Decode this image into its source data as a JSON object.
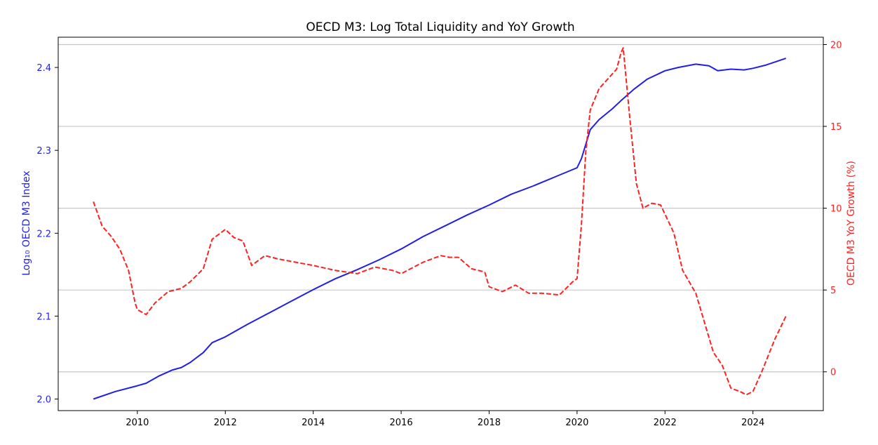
{
  "chart_data": {
    "type": "line",
    "title": "OECD M3: Log Total Liquidity and YoY Growth",
    "xlabel": "",
    "x_ticks": [
      "2010",
      "2012",
      "2014",
      "2016",
      "2018",
      "2020",
      "2022",
      "2024"
    ],
    "xlim": [
      2008.2,
      2025.6
    ],
    "grid": "horizontal lines at right-axis ticks",
    "left_axis": {
      "label": "Log₁₀ OECD M3 Index",
      "color": "#1f1fe8",
      "ylim": [
        1.986,
        2.4365
      ],
      "ticks": [
        "2.0",
        "2.1",
        "2.2",
        "2.3",
        "2.4"
      ]
    },
    "right_axis": {
      "label": "OECD M3 YoY Growth (%)",
      "color": "#ff2020",
      "ylim": [
        -2.37,
        20.45
      ],
      "ticks": [
        "0",
        "5",
        "10",
        "15",
        "20"
      ]
    },
    "series": [
      {
        "axis": "left",
        "style": "solid",
        "color": "#1f1fe8",
        "x": [
          2009.0,
          2009.5,
          2010.0,
          2010.2,
          2010.5,
          2010.8,
          2011.0,
          2011.2,
          2011.5,
          2011.7,
          2012.0,
          2012.5,
          2013.0,
          2013.5,
          2014.0,
          2014.5,
          2015.0,
          2015.5,
          2016.0,
          2016.5,
          2017.0,
          2017.5,
          2018.0,
          2018.5,
          2019.0,
          2019.5,
          2020.0,
          2020.1,
          2020.3,
          2020.5,
          2020.8,
          2021.0,
          2021.3,
          2021.6,
          2022.0,
          2022.3,
          2022.7,
          2023.0,
          2023.2,
          2023.5,
          2023.8,
          2024.0,
          2024.3,
          2024.75
        ],
        "y": [
          2.0,
          2.009,
          2.016,
          2.019,
          2.028,
          2.035,
          2.038,
          2.044,
          2.056,
          2.068,
          2.075,
          2.09,
          2.104,
          2.118,
          2.132,
          2.145,
          2.156,
          2.168,
          2.181,
          2.196,
          2.209,
          2.222,
          2.234,
          2.247,
          2.257,
          2.268,
          2.279,
          2.29,
          2.325,
          2.337,
          2.35,
          2.36,
          2.374,
          2.386,
          2.396,
          2.4,
          2.404,
          2.402,
          2.396,
          2.398,
          2.397,
          2.399,
          2.403,
          2.411
        ]
      },
      {
        "axis": "right",
        "style": "dashed",
        "color": "#ff2020",
        "x": [
          2009.0,
          2009.2,
          2009.4,
          2009.6,
          2009.8,
          2009.95,
          2010.0,
          2010.2,
          2010.4,
          2010.7,
          2011.0,
          2011.2,
          2011.5,
          2011.7,
          2012.0,
          2012.2,
          2012.4,
          2012.6,
          2012.9,
          2013.2,
          2013.6,
          2014.0,
          2014.5,
          2015.0,
          2015.4,
          2015.8,
          2016.0,
          2016.5,
          2016.9,
          2017.1,
          2017.3,
          2017.6,
          2017.9,
          2018.0,
          2018.3,
          2018.6,
          2018.9,
          2019.2,
          2019.6,
          2019.9,
          2020.0,
          2020.1,
          2020.2,
          2020.3,
          2020.5,
          2020.7,
          2020.9,
          2021.0,
          2021.05,
          2021.2,
          2021.35,
          2021.5,
          2021.7,
          2021.9,
          2022.2,
          2022.4,
          2022.7,
          2022.9,
          2023.1,
          2023.3,
          2023.5,
          2023.7,
          2023.85,
          2024.0,
          2024.2,
          2024.5,
          2024.75
        ],
        "y": [
          10.4,
          8.9,
          8.3,
          7.5,
          6.2,
          4.2,
          3.8,
          3.5,
          4.2,
          4.9,
          5.1,
          5.5,
          6.3,
          8.1,
          8.7,
          8.2,
          8.0,
          6.5,
          7.1,
          6.9,
          6.7,
          6.5,
          6.2,
          6.0,
          6.4,
          6.2,
          6.0,
          6.7,
          7.1,
          7.0,
          7.0,
          6.3,
          6.1,
          5.2,
          4.9,
          5.3,
          4.8,
          4.8,
          4.7,
          5.5,
          5.7,
          9.0,
          13.5,
          16.0,
          17.3,
          17.9,
          18.5,
          19.5,
          19.8,
          15.5,
          11.5,
          10.0,
          10.3,
          10.2,
          8.5,
          6.2,
          4.8,
          3.0,
          1.2,
          0.4,
          -1.0,
          -1.2,
          -1.4,
          -1.2,
          0.0,
          2.0,
          3.4
        ]
      }
    ]
  }
}
